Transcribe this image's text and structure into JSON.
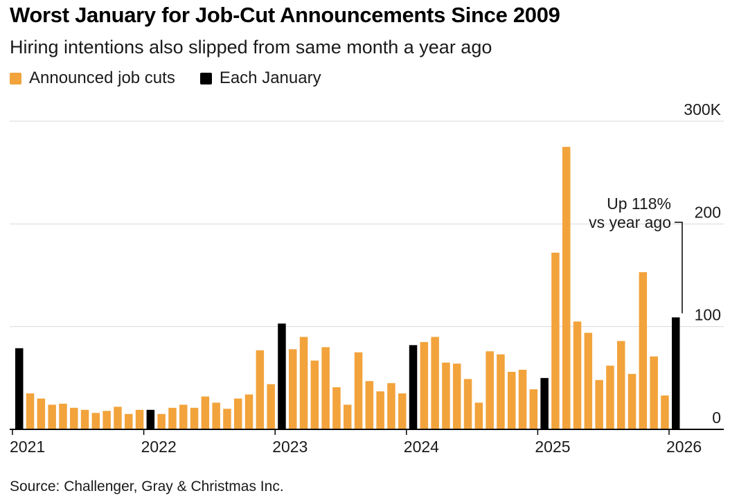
{
  "header": {
    "title": "Worst January for Job-Cut Announcements Since 2009",
    "subtitle": "Hiring intentions also slipped from same month a year ago",
    "legend": [
      {
        "label": "Announced job cuts",
        "color": "#f2a33c"
      },
      {
        "label": "Each January",
        "color": "#000000"
      }
    ]
  },
  "chart_data": {
    "type": "bar",
    "title": "Worst January for Job-Cut Announcements Since 2009",
    "subtitle": "Hiring intentions also slipped from same month a year ago",
    "unit": "thousands of announced job cuts",
    "x_monthly_from": "2021-01",
    "x_monthly_to": "2026-01",
    "ylim": [
      0,
      300
    ],
    "grid": "horizontal",
    "colors": {
      "job_cuts": "#f2a33c",
      "each_january": "#000000",
      "gridline": "#d9d9d9",
      "axis": "#000000"
    },
    "y_ticks": [
      {
        "value": 300,
        "label": "300K"
      },
      {
        "value": 200,
        "label": "200"
      },
      {
        "value": 100,
        "label": "100"
      },
      {
        "value": 0,
        "label": "0"
      }
    ],
    "x_tick_years": [
      "2021",
      "2022",
      "2023",
      "2024",
      "2025",
      "2026"
    ],
    "january_every": 12,
    "values": [
      79,
      35,
      30,
      24,
      25,
      21,
      19,
      16,
      18,
      22,
      15,
      19,
      19,
      15,
      21,
      24,
      21,
      32,
      26,
      20,
      30,
      34,
      77,
      44,
      103,
      78,
      90,
      67,
      80,
      41,
      24,
      75,
      47,
      37,
      45,
      35,
      82,
      85,
      90,
      65,
      64,
      49,
      26,
      76,
      73,
      56,
      58,
      39,
      50,
      172,
      275,
      105,
      94,
      48,
      62,
      86,
      54,
      153,
      71,
      33,
      109
    ],
    "annotation": {
      "text_lines": [
        "Up 118%",
        "vs year ago"
      ],
      "target_month": "2026-01"
    }
  },
  "footer": {
    "source": "Source: Challenger, Gray & Christmas Inc."
  }
}
